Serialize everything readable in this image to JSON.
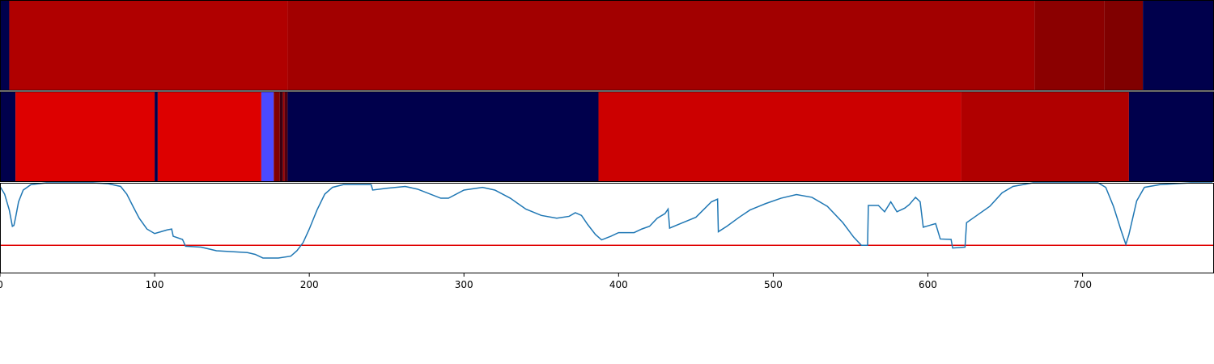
{
  "chart_data": {
    "type": "line",
    "xlim": [
      0,
      785
    ],
    "xticks": [
      0,
      100,
      200,
      300,
      400,
      500,
      600,
      700
    ],
    "ylim": [
      0,
      1
    ],
    "heatmaps": [
      {
        "segments": [
          {
            "start": 0,
            "end": 6,
            "color": "#00004c"
          },
          {
            "start": 6,
            "end": 186,
            "color": "#b00000"
          },
          {
            "start": 186,
            "end": 669,
            "color": "#a20000"
          },
          {
            "start": 669,
            "end": 714,
            "color": "#8b0000"
          },
          {
            "start": 714,
            "end": 739,
            "color": "#800000"
          },
          {
            "start": 739,
            "end": 785,
            "color": "#00004c"
          }
        ]
      },
      {
        "segments": [
          {
            "start": 0,
            "end": 10,
            "color": "#00004c"
          },
          {
            "start": 10,
            "end": 100,
            "color": "#dd0000"
          },
          {
            "start": 100,
            "end": 102,
            "color": "#00004c"
          },
          {
            "start": 102,
            "end": 169,
            "color": "#dd0000"
          },
          {
            "start": 169,
            "end": 177,
            "color": "#4a4aff"
          },
          {
            "start": 177,
            "end": 181,
            "color": "#800000"
          },
          {
            "start": 181,
            "end": 183,
            "color": "#3a0010"
          },
          {
            "start": 183,
            "end": 184,
            "color": "#a00000"
          },
          {
            "start": 184,
            "end": 186,
            "color": "#500010"
          },
          {
            "start": 186,
            "end": 387,
            "color": "#00004c"
          },
          {
            "start": 387,
            "end": 621.5,
            "color": "#cc0000"
          },
          {
            "start": 621.5,
            "end": 730,
            "color": "#b00000"
          },
          {
            "start": 730,
            "end": 785,
            "color": "#00004c"
          }
        ]
      }
    ],
    "threshold": {
      "value": 0.31,
      "color": "#e00000"
    },
    "series": [
      {
        "color": "#1f77b4",
        "x": [
          0,
          3,
          6,
          8,
          9,
          10,
          12,
          15,
          20,
          30,
          60,
          70,
          78,
          82,
          86,
          90,
          95,
          100,
          104,
          108,
          111,
          112,
          118,
          120,
          130,
          140,
          150,
          160,
          165,
          170,
          180,
          188,
          192,
          196,
          200,
          205,
          210,
          215,
          222,
          240,
          241,
          250,
          262,
          270,
          285,
          290,
          300,
          312,
          320,
          330,
          340,
          350,
          360,
          368,
          372,
          376,
          380,
          385,
          389,
          395,
          400,
          410,
          415,
          420,
          425,
          430,
          432,
          433,
          440,
          450,
          460,
          464,
          464.5,
          470,
          478,
          485,
          495,
          505,
          515,
          525,
          535,
          545,
          552,
          557,
          561,
          561.5,
          568,
          572,
          576,
          580,
          585,
          588,
          592,
          595,
          597,
          605,
          608,
          615,
          616,
          624,
          625,
          630,
          640,
          648,
          655,
          668,
          710,
          715,
          720,
          725,
          728,
          730,
          735,
          740,
          750,
          770,
          784
        ],
        "values": [
          0.96,
          0.875,
          0.7,
          0.52,
          0.53,
          0.61,
          0.79,
          0.92,
          0.98,
          1.0,
          1.0,
          0.99,
          0.96,
          0.875,
          0.74,
          0.61,
          0.49,
          0.44,
          0.46,
          0.48,
          0.49,
          0.41,
          0.375,
          0.3,
          0.29,
          0.25,
          0.24,
          0.23,
          0.21,
          0.17,
          0.17,
          0.19,
          0.25,
          0.34,
          0.49,
          0.7,
          0.875,
          0.95,
          0.98,
          0.98,
          0.92,
          0.94,
          0.96,
          0.93,
          0.83,
          0.83,
          0.92,
          0.95,
          0.92,
          0.83,
          0.71,
          0.64,
          0.61,
          0.63,
          0.67,
          0.64,
          0.54,
          0.43,
          0.37,
          0.41,
          0.45,
          0.45,
          0.49,
          0.52,
          0.61,
          0.66,
          0.71,
          0.5,
          0.55,
          0.62,
          0.79,
          0.82,
          0.46,
          0.52,
          0.62,
          0.7,
          0.77,
          0.83,
          0.87,
          0.84,
          0.74,
          0.56,
          0.4,
          0.31,
          0.31,
          0.75,
          0.75,
          0.68,
          0.79,
          0.68,
          0.72,
          0.76,
          0.84,
          0.79,
          0.51,
          0.55,
          0.38,
          0.375,
          0.28,
          0.29,
          0.56,
          0.62,
          0.74,
          0.89,
          0.96,
          1.0,
          1.0,
          0.95,
          0.74,
          0.47,
          0.32,
          0.43,
          0.8,
          0.95,
          0.98,
          1.0,
          1.0
        ]
      }
    ]
  }
}
